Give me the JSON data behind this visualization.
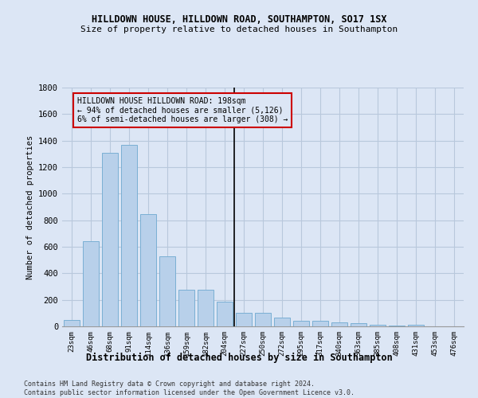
{
  "title": "HILLDOWN HOUSE, HILLDOWN ROAD, SOUTHAMPTON, SO17 1SX",
  "subtitle": "Size of property relative to detached houses in Southampton",
  "xlabel": "Distribution of detached houses by size in Southampton",
  "ylabel": "Number of detached properties",
  "footer_line1": "Contains HM Land Registry data © Crown copyright and database right 2024.",
  "footer_line2": "Contains public sector information licensed under the Open Government Licence v3.0.",
  "categories": [
    "23sqm",
    "46sqm",
    "68sqm",
    "91sqm",
    "114sqm",
    "136sqm",
    "159sqm",
    "182sqm",
    "204sqm",
    "227sqm",
    "250sqm",
    "272sqm",
    "295sqm",
    "317sqm",
    "340sqm",
    "363sqm",
    "385sqm",
    "408sqm",
    "431sqm",
    "453sqm",
    "476sqm"
  ],
  "values": [
    50,
    640,
    1310,
    1370,
    845,
    530,
    275,
    275,
    185,
    105,
    105,
    65,
    40,
    40,
    30,
    25,
    15,
    5,
    15,
    0,
    0
  ],
  "bar_color": "#b8d0ea",
  "bar_edge_color": "#7aafd4",
  "bg_color": "#dce6f5",
  "grid_color": "#b8c8dc",
  "annotation_text": "HILLDOWN HOUSE HILLDOWN ROAD: 198sqm\n← 94% of detached houses are smaller (5,126)\n6% of semi-detached houses are larger (308) →",
  "vline_x_index": 8.5,
  "annotation_box_color": "#cc0000",
  "ylim": [
    0,
    1800
  ],
  "yticks": [
    0,
    200,
    400,
    600,
    800,
    1000,
    1200,
    1400,
    1600,
    1800
  ]
}
